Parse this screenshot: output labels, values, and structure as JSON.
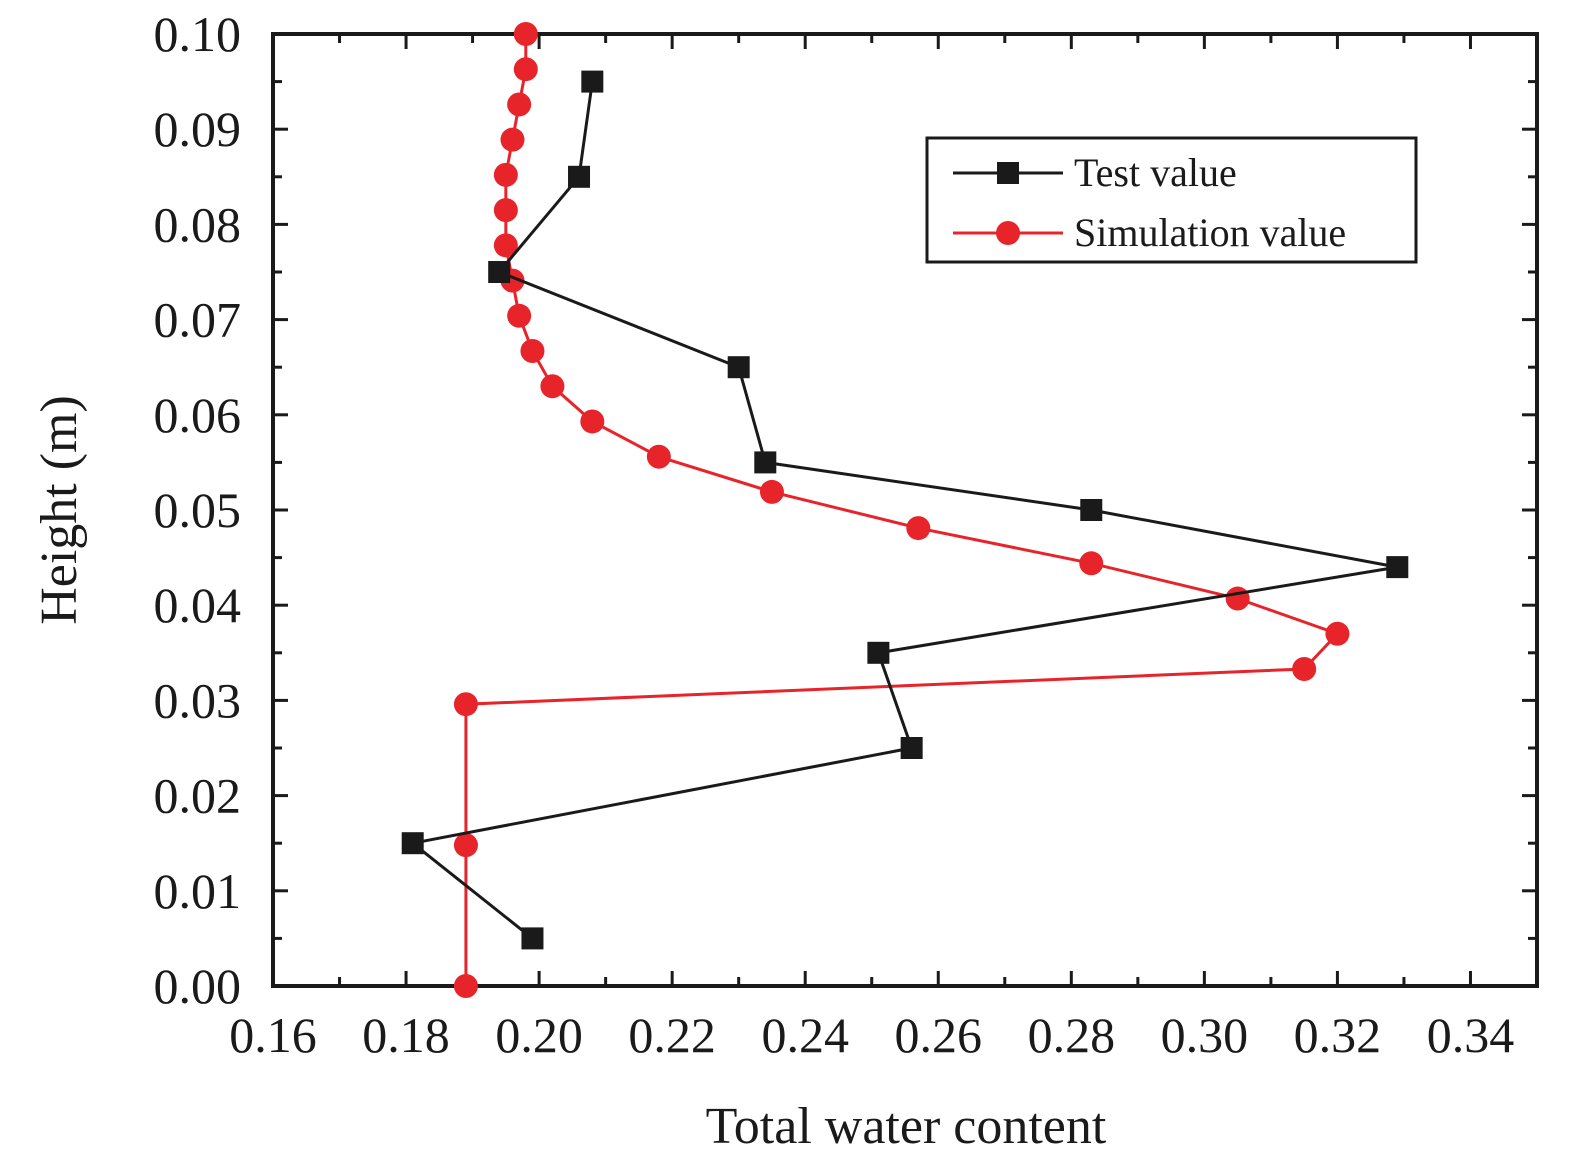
{
  "chart_data": {
    "type": "line",
    "title": "",
    "xlabel": "Total water content",
    "ylabel": "Height (m)",
    "xlim": [
      0.16,
      0.35
    ],
    "ylim": [
      0.0,
      0.1
    ],
    "xticks": [
      "0.16",
      "0.18",
      "0.20",
      "0.22",
      "0.24",
      "0.26",
      "0.28",
      "0.30",
      "0.32",
      "0.34"
    ],
    "yticks": [
      "0.00",
      "0.01",
      "0.02",
      "0.03",
      "0.04",
      "0.05",
      "0.06",
      "0.07",
      "0.08",
      "0.09",
      "0.10"
    ],
    "grid": false,
    "legend_position": "top-right",
    "series": [
      {
        "name": "Test value",
        "color": "#1a1a1a",
        "marker": "square",
        "points": [
          {
            "x": 0.208,
            "y": 0.095
          },
          {
            "x": 0.206,
            "y": 0.085
          },
          {
            "x": 0.194,
            "y": 0.075
          },
          {
            "x": 0.23,
            "y": 0.065
          },
          {
            "x": 0.234,
            "y": 0.055
          },
          {
            "x": 0.283,
            "y": 0.05
          },
          {
            "x": 0.329,
            "y": 0.044
          },
          {
            "x": 0.251,
            "y": 0.035
          },
          {
            "x": 0.256,
            "y": 0.025
          },
          {
            "x": 0.181,
            "y": 0.015
          },
          {
            "x": 0.199,
            "y": 0.005
          }
        ]
      },
      {
        "name": "Simulation value",
        "color": "#e8242b",
        "marker": "circle",
        "points": [
          {
            "x": 0.198,
            "y": 0.1
          },
          {
            "x": 0.198,
            "y": 0.0963
          },
          {
            "x": 0.197,
            "y": 0.0926
          },
          {
            "x": 0.196,
            "y": 0.0889
          },
          {
            "x": 0.195,
            "y": 0.0852
          },
          {
            "x": 0.195,
            "y": 0.0815
          },
          {
            "x": 0.195,
            "y": 0.0778
          },
          {
            "x": 0.196,
            "y": 0.0741
          },
          {
            "x": 0.197,
            "y": 0.0704
          },
          {
            "x": 0.199,
            "y": 0.0667
          },
          {
            "x": 0.202,
            "y": 0.063
          },
          {
            "x": 0.208,
            "y": 0.0593
          },
          {
            "x": 0.218,
            "y": 0.0556
          },
          {
            "x": 0.235,
            "y": 0.0519
          },
          {
            "x": 0.257,
            "y": 0.0481
          },
          {
            "x": 0.283,
            "y": 0.0444
          },
          {
            "x": 0.305,
            "y": 0.0407
          },
          {
            "x": 0.32,
            "y": 0.037
          },
          {
            "x": 0.315,
            "y": 0.0333
          },
          {
            "x": 0.189,
            "y": 0.0296
          },
          {
            "x": 0.189,
            "y": 0.0148
          },
          {
            "x": 0.189,
            "y": 0.0
          }
        ]
      }
    ]
  }
}
